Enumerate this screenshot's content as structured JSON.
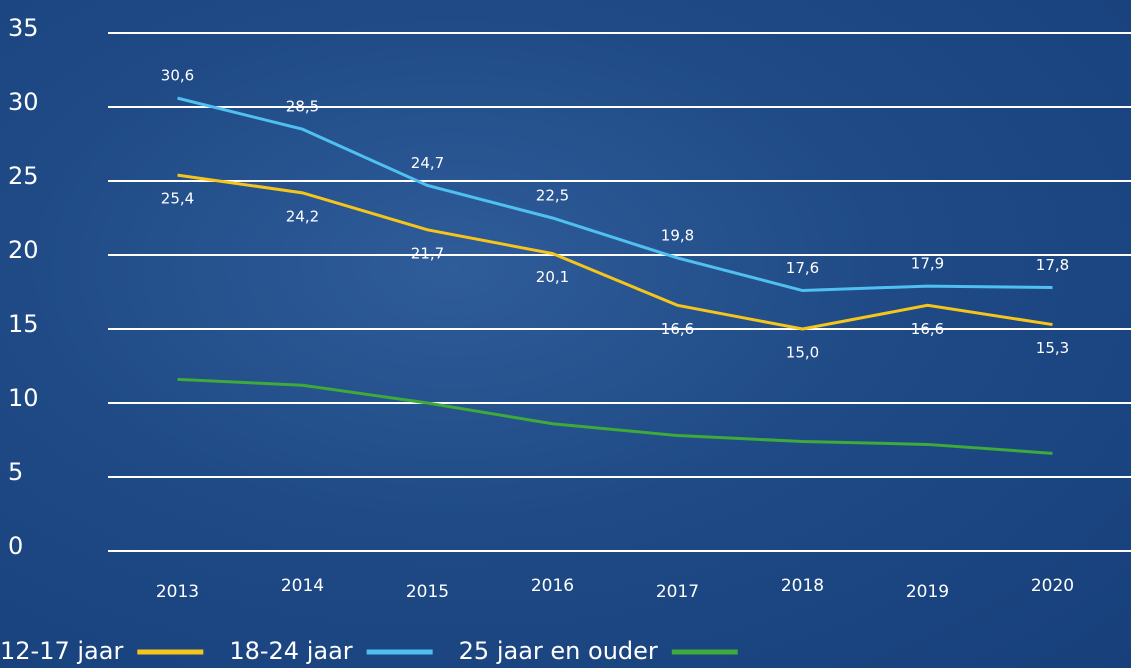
{
  "chart_data": {
    "type": "line",
    "categories": [
      "2013",
      "2014",
      "2015",
      "2016",
      "2017",
      "2018",
      "2019",
      "2020"
    ],
    "series": [
      {
        "name": "12-17 jaar",
        "color": "#f6c51b",
        "values": [
          25.4,
          24.2,
          21.7,
          20.1,
          16.6,
          15.0,
          16.6,
          15.3
        ],
        "value_labels": [
          "25,4",
          "24,2",
          "21,7",
          "20,1",
          "16,6",
          "15,0",
          "16,6",
          "15,3"
        ]
      },
      {
        "name": "18-24 jaar",
        "color": "#4fc0f0",
        "values": [
          30.6,
          28.5,
          24.7,
          22.5,
          19.8,
          17.6,
          17.9,
          17.8
        ],
        "value_labels": [
          "30,6",
          "28,5",
          "24,7",
          "22,5",
          "19,8",
          "17,6",
          "17,9",
          "17,8"
        ]
      },
      {
        "name": "25 jaar en ouder",
        "color": "#3daa3a",
        "values": [
          11.6,
          11.2,
          10.0,
          8.6,
          7.8,
          7.4,
          7.2,
          6.6
        ]
      }
    ],
    "ylim": [
      0,
      35
    ],
    "yticks": [
      0,
      5,
      10,
      15,
      20,
      25,
      30,
      35
    ],
    "grid": true
  }
}
